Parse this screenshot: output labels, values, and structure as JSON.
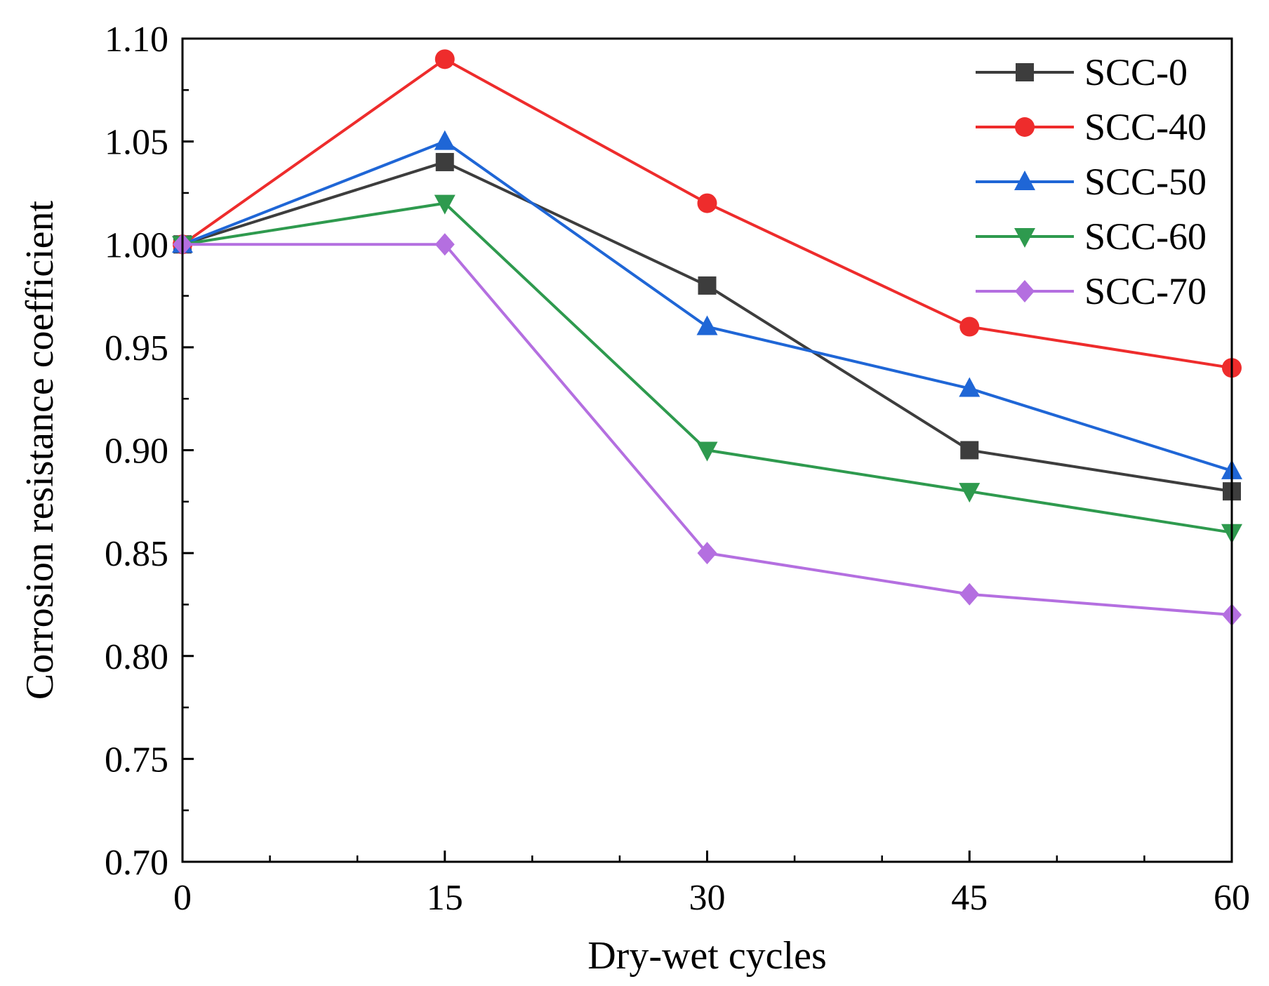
{
  "chart_data": {
    "type": "line",
    "title": "",
    "xlabel": "Dry-wet cycles",
    "ylabel": "Corrosion resistance coefficient",
    "x": [
      0,
      15,
      30,
      45,
      60
    ],
    "xlim": [
      0,
      60
    ],
    "ylim": [
      0.7,
      1.1
    ],
    "x_ticks": [
      0,
      15,
      30,
      45,
      60
    ],
    "x_tick_labels": [
      "0",
      "15",
      "30",
      "45",
      "60"
    ],
    "y_ticks": [
      0.7,
      0.75,
      0.8,
      0.85,
      0.9,
      0.95,
      1.0,
      1.05,
      1.1
    ],
    "y_tick_labels": [
      "0.70",
      "0.75",
      "0.80",
      "0.85",
      "0.90",
      "0.95",
      "1.00",
      "1.05",
      "1.10"
    ],
    "grid": false,
    "legend_position": "top-right",
    "series": [
      {
        "name": "SCC-0",
        "color": "#3d3d3d",
        "marker": "square",
        "values": [
          1.0,
          1.04,
          0.98,
          0.9,
          0.88
        ]
      },
      {
        "name": "SCC-40",
        "color": "#ee2c2c",
        "marker": "circle",
        "values": [
          1.0,
          1.09,
          1.02,
          0.96,
          0.94
        ]
      },
      {
        "name": "SCC-50",
        "color": "#1f66d6",
        "marker": "triangle-up",
        "values": [
          1.0,
          1.05,
          0.96,
          0.93,
          0.89
        ]
      },
      {
        "name": "SCC-60",
        "color": "#2e9a4e",
        "marker": "triangle-down",
        "values": [
          1.0,
          1.02,
          0.9,
          0.88,
          0.86
        ]
      },
      {
        "name": "SCC-70",
        "color": "#b46fe0",
        "marker": "diamond",
        "values": [
          1.0,
          1.0,
          0.85,
          0.83,
          0.82
        ]
      }
    ]
  }
}
